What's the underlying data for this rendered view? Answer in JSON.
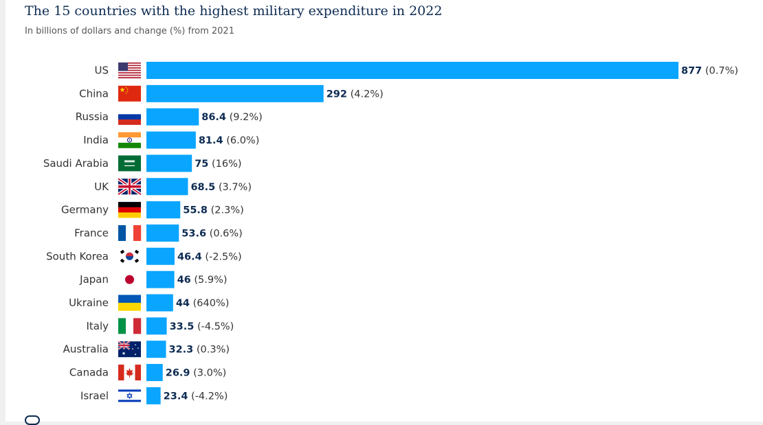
{
  "title": "The 15 countries with the highest military expenditure in 2022",
  "subtitle": "In billions of dollars and change (%) from 2021",
  "colors": {
    "bar": "#0aa5ff",
    "value_text": "#0d2b52",
    "label_text": "#333333"
  },
  "chart_data": {
    "type": "bar",
    "orientation": "horizontal",
    "title": "The 15 countries with the highest military expenditure in 2022",
    "subtitle": "In billions of dollars and change (%) from 2021",
    "xlabel": "",
    "ylabel": "",
    "unit": "billions of dollars",
    "xlim": [
      0,
      877
    ],
    "grid": false,
    "legend": "none",
    "categories": [
      "US",
      "China",
      "Russia",
      "India",
      "Saudi Arabia",
      "UK",
      "Germany",
      "France",
      "South Korea",
      "Japan",
      "Ukraine",
      "Italy",
      "Australia",
      "Canada",
      "Israel"
    ],
    "flags": [
      "us-flag",
      "china-flag",
      "russia-flag",
      "india-flag",
      "saudi-arabia-flag",
      "uk-flag",
      "germany-flag",
      "france-flag",
      "south-korea-flag",
      "japan-flag",
      "ukraine-flag",
      "italy-flag",
      "australia-flag",
      "canada-flag",
      "israel-flag"
    ],
    "values": [
      877,
      292,
      86.4,
      81.4,
      75,
      68.5,
      55.8,
      53.6,
      46.4,
      46,
      44,
      33.5,
      32.3,
      26.9,
      23.4
    ],
    "value_labels": [
      "877",
      "292",
      "86.4",
      "81.4",
      "75",
      "68.5",
      "55.8",
      "53.6",
      "46.4",
      "46",
      "44",
      "33.5",
      "32.3",
      "26.9",
      "23.4"
    ],
    "change_labels": [
      "(0.7%)",
      "(4.2%)",
      "(9.2%)",
      "(6.0%)",
      "(16%)",
      "(3.7%)",
      "(2.3%)",
      "(0.6%)",
      "(-2.5%)",
      "(5.9%)",
      "(640%)",
      "(-4.5%)",
      "(0.3%)",
      "(3.0%)",
      "(-4.2%)"
    ]
  }
}
